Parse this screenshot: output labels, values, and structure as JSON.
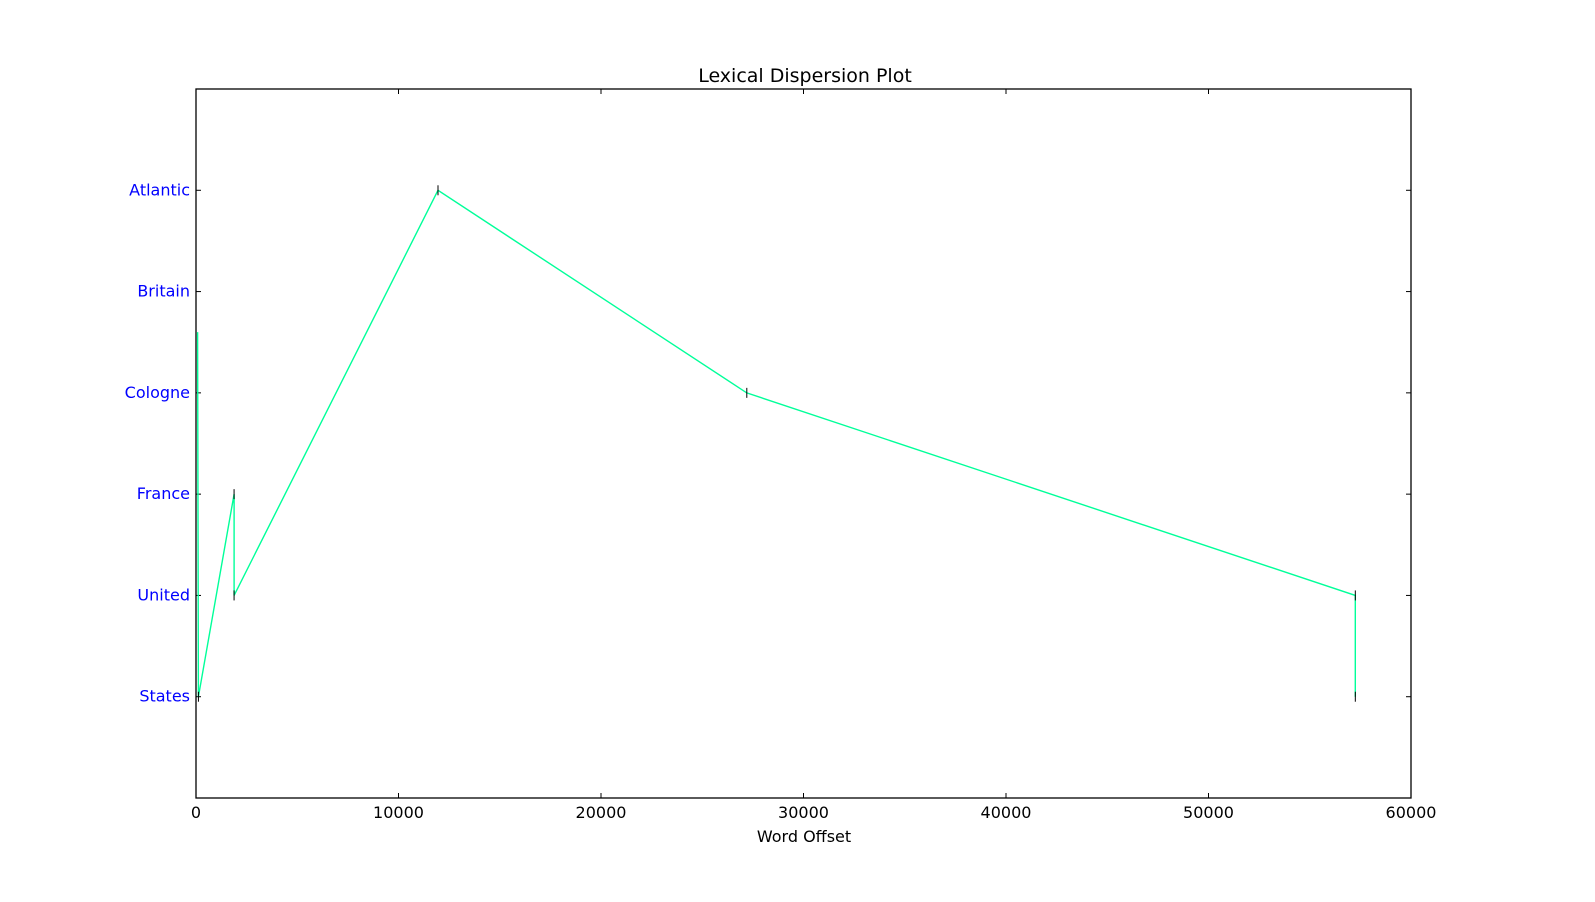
{
  "chart_data": {
    "type": "line",
    "title": "Lexical Dispersion Plot",
    "xlabel": "Word Offset",
    "ylabel": "",
    "xlim": [
      0,
      60000
    ],
    "ylim": [
      -1,
      6
    ],
    "x_ticks": [
      0,
      10000,
      20000,
      30000,
      40000,
      50000,
      60000
    ],
    "y_categories": [
      "States",
      "United",
      "France",
      "Cologne",
      "Britain",
      "Atlantic"
    ],
    "ytick_label_color": "#0000ff",
    "grid": false,
    "legend": "none",
    "series": [
      {
        "color": "#00ff99",
        "points": [
          {
            "x": 80,
            "y": 3.6
          },
          {
            "x": 120,
            "y": 0
          },
          {
            "x": 1880,
            "y": 2
          },
          {
            "x": 1880,
            "y": 1
          },
          {
            "x": 11950,
            "y": 5
          },
          {
            "x": 27200,
            "y": 3
          },
          {
            "x": 57250,
            "y": 1
          },
          {
            "x": 57250,
            "y": 0
          }
        ]
      }
    ],
    "markers": [
      {
        "x": 120,
        "y": 0
      },
      {
        "x": 1880,
        "y": 2
      },
      {
        "x": 1880,
        "y": 1
      },
      {
        "x": 11950,
        "y": 5
      },
      {
        "x": 27200,
        "y": 3
      },
      {
        "x": 57250,
        "y": 1
      },
      {
        "x": 57250,
        "y": 0
      }
    ]
  }
}
